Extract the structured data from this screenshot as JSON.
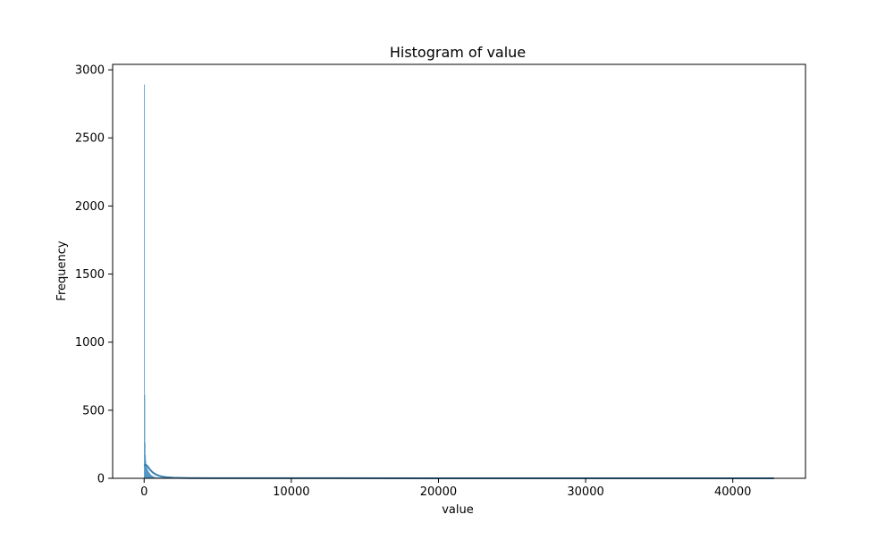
{
  "chart_data": {
    "type": "bar",
    "title": "Histogram of value",
    "xlabel": "value",
    "ylabel": "Frequency",
    "xlim": [
      -2140,
      44940
    ],
    "ylim": [
      0,
      3040
    ],
    "x_ticks": [
      0,
      10000,
      20000,
      30000,
      40000
    ],
    "x_tick_labels": [
      "0",
      "10000",
      "20000",
      "30000",
      "40000"
    ],
    "y_ticks": [
      0,
      500,
      1000,
      1500,
      2000,
      2500,
      3000
    ],
    "y_tick_labels": [
      "0",
      "500",
      "1000",
      "1500",
      "2000",
      "2500",
      "3000"
    ],
    "grid": false,
    "legend": "none",
    "colors": {
      "bar_fill": "#7fb3d5",
      "bar_edge": "#4a90c2",
      "kde_line": "#3b7fb0"
    },
    "bins": [
      {
        "x0": 0,
        "x1": 22,
        "count": 2890
      },
      {
        "x0": 22,
        "x1": 44,
        "count": 610
      },
      {
        "x0": 44,
        "x1": 66,
        "count": 260
      },
      {
        "x0": 66,
        "x1": 88,
        "count": 170
      },
      {
        "x0": 88,
        "x1": 110,
        "count": 130
      },
      {
        "x0": 110,
        "x1": 132,
        "count": 105
      },
      {
        "x0": 132,
        "x1": 154,
        "count": 90
      },
      {
        "x0": 154,
        "x1": 176,
        "count": 80
      },
      {
        "x0": 176,
        "x1": 198,
        "count": 72
      },
      {
        "x0": 198,
        "x1": 220,
        "count": 66
      },
      {
        "x0": 220,
        "x1": 242,
        "count": 60
      },
      {
        "x0": 242,
        "x1": 264,
        "count": 55
      },
      {
        "x0": 264,
        "x1": 286,
        "count": 50
      },
      {
        "x0": 286,
        "x1": 308,
        "count": 45
      },
      {
        "x0": 308,
        "x1": 330,
        "count": 42
      },
      {
        "x0": 330,
        "x1": 352,
        "count": 38
      },
      {
        "x0": 352,
        "x1": 374,
        "count": 35
      },
      {
        "x0": 374,
        "x1": 396,
        "count": 32
      },
      {
        "x0": 396,
        "x1": 418,
        "count": 29
      },
      {
        "x0": 418,
        "x1": 440,
        "count": 26
      },
      {
        "x0": 440,
        "x1": 462,
        "count": 24
      },
      {
        "x0": 462,
        "x1": 484,
        "count": 22
      },
      {
        "x0": 484,
        "x1": 506,
        "count": 20
      },
      {
        "x0": 506,
        "x1": 528,
        "count": 18
      },
      {
        "x0": 528,
        "x1": 550,
        "count": 16
      },
      {
        "x0": 550,
        "x1": 572,
        "count": 15
      },
      {
        "x0": 572,
        "x1": 594,
        "count": 13
      },
      {
        "x0": 594,
        "x1": 616,
        "count": 12
      },
      {
        "x0": 616,
        "x1": 638,
        "count": 11
      },
      {
        "x0": 638,
        "x1": 660,
        "count": 10
      },
      {
        "x0": 660,
        "x1": 700,
        "count": 9
      },
      {
        "x0": 700,
        "x1": 760,
        "count": 8
      },
      {
        "x0": 760,
        "x1": 840,
        "count": 7
      },
      {
        "x0": 840,
        "x1": 940,
        "count": 6
      },
      {
        "x0": 940,
        "x1": 1060,
        "count": 5
      },
      {
        "x0": 1060,
        "x1": 1200,
        "count": 4
      },
      {
        "x0": 1200,
        "x1": 1400,
        "count": 3
      },
      {
        "x0": 1400,
        "x1": 1800,
        "count": 2
      },
      {
        "x0": 1800,
        "x1": 2600,
        "count": 1
      }
    ],
    "kde": {
      "x": [
        0,
        100,
        200,
        300,
        400,
        500,
        600,
        800,
        1000,
        1200,
        1500,
        2000,
        3000,
        5000,
        10000,
        20000,
        30000,
        40000,
        42800
      ],
      "y": [
        92,
        101,
        92,
        78,
        64,
        52,
        42,
        28,
        19,
        13,
        8,
        4,
        2,
        1,
        0.5,
        0.2,
        0.1,
        0.05,
        0.05
      ]
    }
  }
}
